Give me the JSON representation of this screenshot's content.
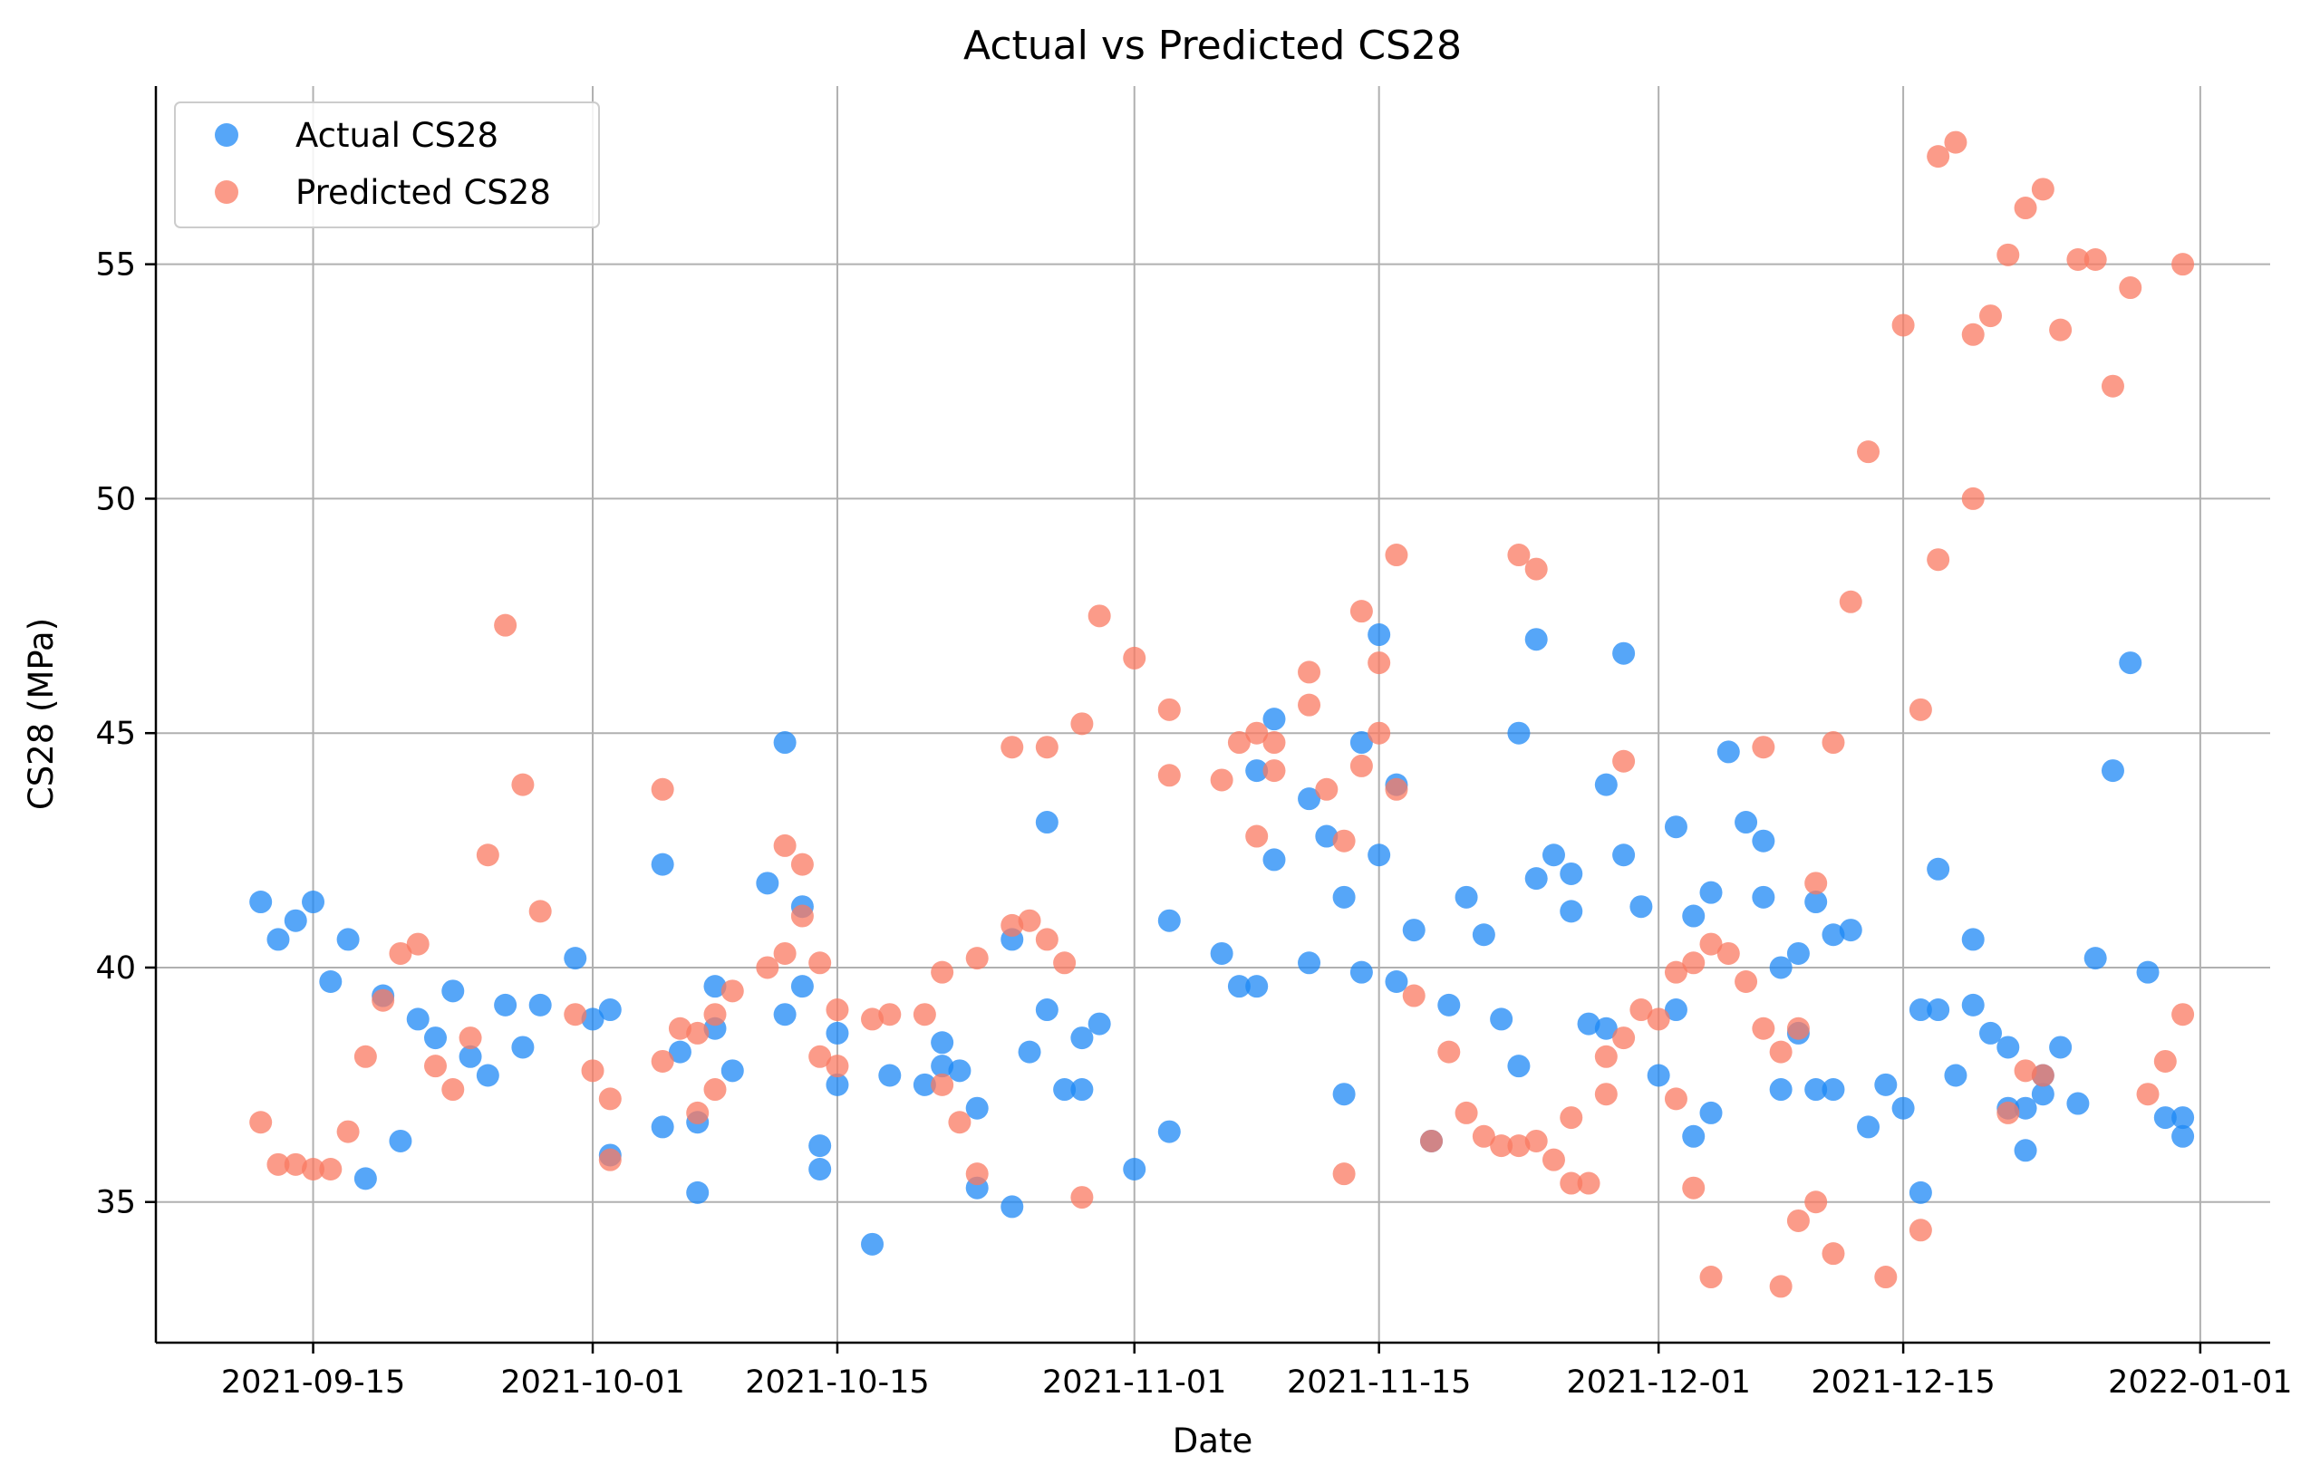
{
  "chart_data": {
    "type": "scatter",
    "title": "Actual vs Predicted CS28",
    "xlabel": "Date",
    "ylabel": "CS28 (MPa)",
    "x_type": "date",
    "xlim": [
      "2021-09-06",
      "2022-01-05"
    ],
    "ylim": [
      32,
      58.8
    ],
    "x_ticks": [
      "2021-09-15",
      "2021-10-01",
      "2021-10-15",
      "2021-11-01",
      "2021-11-15",
      "2021-12-01",
      "2021-12-15",
      "2022-01-01"
    ],
    "y_ticks": [
      35,
      40,
      45,
      50,
      55
    ],
    "grid": true,
    "legend_position": "top-left",
    "series": [
      {
        "name": "Actual CS28",
        "color": "#1E88F5",
        "points": [
          [
            "2021-09-12",
            41.4
          ],
          [
            "2021-09-13",
            40.6
          ],
          [
            "2021-09-14",
            41.0
          ],
          [
            "2021-09-15",
            41.4
          ],
          [
            "2021-09-16",
            39.7
          ],
          [
            "2021-09-17",
            40.6
          ],
          [
            "2021-09-18",
            35.5
          ],
          [
            "2021-09-19",
            39.4
          ],
          [
            "2021-09-20",
            36.3
          ],
          [
            "2021-09-21",
            38.9
          ],
          [
            "2021-09-22",
            38.5
          ],
          [
            "2021-09-23",
            39.5
          ],
          [
            "2021-09-24",
            38.1
          ],
          [
            "2021-09-25",
            37.7
          ],
          [
            "2021-09-26",
            39.2
          ],
          [
            "2021-09-27",
            38.3
          ],
          [
            "2021-09-28",
            39.2
          ],
          [
            "2021-09-30",
            40.2
          ],
          [
            "2021-10-01",
            38.9
          ],
          [
            "2021-10-02",
            39.1
          ],
          [
            "2021-10-02",
            36.0
          ],
          [
            "2021-10-05",
            42.2
          ],
          [
            "2021-10-05",
            36.6
          ],
          [
            "2021-10-06",
            38.2
          ],
          [
            "2021-10-07",
            35.2
          ],
          [
            "2021-10-07",
            36.7
          ],
          [
            "2021-10-08",
            39.6
          ],
          [
            "2021-10-08",
            38.7
          ],
          [
            "2021-10-09",
            37.8
          ],
          [
            "2021-10-11",
            41.8
          ],
          [
            "2021-10-12",
            44.8
          ],
          [
            "2021-10-12",
            39.0
          ],
          [
            "2021-10-13",
            41.3
          ],
          [
            "2021-10-13",
            39.6
          ],
          [
            "2021-10-14",
            36.2
          ],
          [
            "2021-10-14",
            35.7
          ],
          [
            "2021-10-15",
            38.6
          ],
          [
            "2021-10-15",
            37.5
          ],
          [
            "2021-10-17",
            34.1
          ],
          [
            "2021-10-18",
            37.7
          ],
          [
            "2021-10-20",
            37.5
          ],
          [
            "2021-10-21",
            38.4
          ],
          [
            "2021-10-21",
            37.9
          ],
          [
            "2021-10-22",
            37.8
          ],
          [
            "2021-10-23",
            37.0
          ],
          [
            "2021-10-23",
            35.3
          ],
          [
            "2021-10-25",
            40.6
          ],
          [
            "2021-10-25",
            34.9
          ],
          [
            "2021-10-26",
            38.2
          ],
          [
            "2021-10-27",
            43.1
          ],
          [
            "2021-10-27",
            39.1
          ],
          [
            "2021-10-28",
            37.4
          ],
          [
            "2021-10-29",
            38.5
          ],
          [
            "2021-10-29",
            37.4
          ],
          [
            "2021-10-30",
            38.8
          ],
          [
            "2021-11-01",
            35.7
          ],
          [
            "2021-11-03",
            41.0
          ],
          [
            "2021-11-03",
            36.5
          ],
          [
            "2021-11-06",
            40.3
          ],
          [
            "2021-11-07",
            39.6
          ],
          [
            "2021-11-08",
            44.2
          ],
          [
            "2021-11-08",
            39.6
          ],
          [
            "2021-11-09",
            45.3
          ],
          [
            "2021-11-09",
            42.3
          ],
          [
            "2021-11-11",
            43.6
          ],
          [
            "2021-11-11",
            40.1
          ],
          [
            "2021-11-12",
            42.8
          ],
          [
            "2021-11-13",
            41.5
          ],
          [
            "2021-11-13",
            37.3
          ],
          [
            "2021-11-14",
            44.8
          ],
          [
            "2021-11-14",
            39.9
          ],
          [
            "2021-11-15",
            47.1
          ],
          [
            "2021-11-15",
            42.4
          ],
          [
            "2021-11-16",
            43.9
          ],
          [
            "2021-11-16",
            39.7
          ],
          [
            "2021-11-17",
            40.8
          ],
          [
            "2021-11-18",
            36.3
          ],
          [
            "2021-11-19",
            39.2
          ],
          [
            "2021-11-20",
            41.5
          ],
          [
            "2021-11-21",
            40.7
          ],
          [
            "2021-11-22",
            38.9
          ],
          [
            "2021-11-23",
            45.0
          ],
          [
            "2021-11-23",
            37.9
          ],
          [
            "2021-11-24",
            47.0
          ],
          [
            "2021-11-24",
            41.9
          ],
          [
            "2021-11-25",
            42.4
          ],
          [
            "2021-11-26",
            42.0
          ],
          [
            "2021-11-26",
            41.2
          ],
          [
            "2021-11-27",
            38.8
          ],
          [
            "2021-11-28",
            43.9
          ],
          [
            "2021-11-28",
            38.7
          ],
          [
            "2021-11-29",
            46.7
          ],
          [
            "2021-11-29",
            42.4
          ],
          [
            "2021-11-30",
            41.3
          ],
          [
            "2021-12-01",
            37.7
          ],
          [
            "2021-12-02",
            43.0
          ],
          [
            "2021-12-02",
            39.1
          ],
          [
            "2021-12-03",
            41.1
          ],
          [
            "2021-12-03",
            36.4
          ],
          [
            "2021-12-04",
            41.6
          ],
          [
            "2021-12-04",
            36.9
          ],
          [
            "2021-12-05",
            44.6
          ],
          [
            "2021-12-06",
            43.1
          ],
          [
            "2021-12-07",
            42.7
          ],
          [
            "2021-12-07",
            41.5
          ],
          [
            "2021-12-08",
            40.0
          ],
          [
            "2021-12-08",
            37.4
          ],
          [
            "2021-12-09",
            40.3
          ],
          [
            "2021-12-09",
            38.6
          ],
          [
            "2021-12-10",
            41.4
          ],
          [
            "2021-12-10",
            37.4
          ],
          [
            "2021-12-11",
            40.7
          ],
          [
            "2021-12-11",
            37.4
          ],
          [
            "2021-12-12",
            40.8
          ],
          [
            "2021-12-13",
            36.6
          ],
          [
            "2021-12-14",
            37.5
          ],
          [
            "2021-12-15",
            37.0
          ],
          [
            "2021-12-16",
            39.1
          ],
          [
            "2021-12-16",
            35.2
          ],
          [
            "2021-12-17",
            42.1
          ],
          [
            "2021-12-17",
            39.1
          ],
          [
            "2021-12-18",
            37.7
          ],
          [
            "2021-12-19",
            40.6
          ],
          [
            "2021-12-19",
            39.2
          ],
          [
            "2021-12-20",
            38.6
          ],
          [
            "2021-12-21",
            38.3
          ],
          [
            "2021-12-21",
            37.0
          ],
          [
            "2021-12-22",
            37.0
          ],
          [
            "2021-12-22",
            36.1
          ],
          [
            "2021-12-23",
            37.7
          ],
          [
            "2021-12-23",
            37.3
          ],
          [
            "2021-12-24",
            38.3
          ],
          [
            "2021-12-25",
            37.1
          ],
          [
            "2021-12-26",
            40.2
          ],
          [
            "2021-12-27",
            44.2
          ],
          [
            "2021-12-28",
            46.5
          ],
          [
            "2021-12-29",
            39.9
          ],
          [
            "2021-12-30",
            36.8
          ],
          [
            "2021-12-31",
            36.8
          ],
          [
            "2021-12-31",
            36.4
          ]
        ]
      },
      {
        "name": "Predicted CS28",
        "color": "#FA7A62",
        "points": [
          [
            "2021-09-12",
            36.7
          ],
          [
            "2021-09-13",
            35.8
          ],
          [
            "2021-09-14",
            35.8
          ],
          [
            "2021-09-15",
            35.7
          ],
          [
            "2021-09-16",
            35.7
          ],
          [
            "2021-09-17",
            36.5
          ],
          [
            "2021-09-18",
            38.1
          ],
          [
            "2021-09-19",
            39.3
          ],
          [
            "2021-09-20",
            40.3
          ],
          [
            "2021-09-21",
            40.5
          ],
          [
            "2021-09-22",
            37.9
          ],
          [
            "2021-09-23",
            37.4
          ],
          [
            "2021-09-24",
            38.5
          ],
          [
            "2021-09-25",
            42.4
          ],
          [
            "2021-09-26",
            47.3
          ],
          [
            "2021-09-27",
            43.9
          ],
          [
            "2021-09-28",
            41.2
          ],
          [
            "2021-09-30",
            39.0
          ],
          [
            "2021-10-01",
            37.8
          ],
          [
            "2021-10-02",
            37.2
          ],
          [
            "2021-10-02",
            35.9
          ],
          [
            "2021-10-05",
            43.8
          ],
          [
            "2021-10-05",
            38.0
          ],
          [
            "2021-10-06",
            38.7
          ],
          [
            "2021-10-07",
            38.6
          ],
          [
            "2021-10-07",
            36.9
          ],
          [
            "2021-10-08",
            39.0
          ],
          [
            "2021-10-08",
            37.4
          ],
          [
            "2021-10-09",
            39.5
          ],
          [
            "2021-10-11",
            40.0
          ],
          [
            "2021-10-12",
            42.6
          ],
          [
            "2021-10-12",
            40.3
          ],
          [
            "2021-10-13",
            42.2
          ],
          [
            "2021-10-13",
            41.1
          ],
          [
            "2021-10-14",
            40.1
          ],
          [
            "2021-10-14",
            38.1
          ],
          [
            "2021-10-15",
            39.1
          ],
          [
            "2021-10-15",
            37.9
          ],
          [
            "2021-10-17",
            38.9
          ],
          [
            "2021-10-18",
            39.0
          ],
          [
            "2021-10-20",
            39.0
          ],
          [
            "2021-10-21",
            39.9
          ],
          [
            "2021-10-21",
            37.5
          ],
          [
            "2021-10-22",
            36.7
          ],
          [
            "2021-10-23",
            40.2
          ],
          [
            "2021-10-23",
            35.6
          ],
          [
            "2021-10-25",
            44.7
          ],
          [
            "2021-10-25",
            40.9
          ],
          [
            "2021-10-26",
            41.0
          ],
          [
            "2021-10-27",
            44.7
          ],
          [
            "2021-10-27",
            40.6
          ],
          [
            "2021-10-28",
            40.1
          ],
          [
            "2021-10-29",
            45.2
          ],
          [
            "2021-10-29",
            35.1
          ],
          [
            "2021-10-30",
            47.5
          ],
          [
            "2021-11-01",
            46.6
          ],
          [
            "2021-11-03",
            45.5
          ],
          [
            "2021-11-03",
            44.1
          ],
          [
            "2021-11-06",
            44.0
          ],
          [
            "2021-11-07",
            44.8
          ],
          [
            "2021-11-08",
            45.0
          ],
          [
            "2021-11-08",
            42.8
          ],
          [
            "2021-11-09",
            44.8
          ],
          [
            "2021-11-09",
            44.2
          ],
          [
            "2021-11-11",
            46.3
          ],
          [
            "2021-11-11",
            45.6
          ],
          [
            "2021-11-12",
            43.8
          ],
          [
            "2021-11-13",
            42.7
          ],
          [
            "2021-11-13",
            35.6
          ],
          [
            "2021-11-14",
            47.6
          ],
          [
            "2021-11-14",
            44.3
          ],
          [
            "2021-11-15",
            46.5
          ],
          [
            "2021-11-15",
            45.0
          ],
          [
            "2021-11-16",
            48.8
          ],
          [
            "2021-11-16",
            43.8
          ],
          [
            "2021-11-17",
            39.4
          ],
          [
            "2021-11-18",
            36.3
          ],
          [
            "2021-11-19",
            38.2
          ],
          [
            "2021-11-20",
            36.9
          ],
          [
            "2021-11-21",
            36.4
          ],
          [
            "2021-11-22",
            36.2
          ],
          [
            "2021-11-23",
            48.8
          ],
          [
            "2021-11-23",
            36.2
          ],
          [
            "2021-11-24",
            48.5
          ],
          [
            "2021-11-24",
            36.3
          ],
          [
            "2021-11-25",
            35.9
          ],
          [
            "2021-11-26",
            36.8
          ],
          [
            "2021-11-26",
            35.4
          ],
          [
            "2021-11-27",
            35.4
          ],
          [
            "2021-11-28",
            38.1
          ],
          [
            "2021-11-28",
            37.3
          ],
          [
            "2021-11-29",
            44.4
          ],
          [
            "2021-11-29",
            38.5
          ],
          [
            "2021-11-30",
            39.1
          ],
          [
            "2021-12-01",
            38.9
          ],
          [
            "2021-12-02",
            39.9
          ],
          [
            "2021-12-02",
            37.2
          ],
          [
            "2021-12-03",
            40.1
          ],
          [
            "2021-12-03",
            35.3
          ],
          [
            "2021-12-04",
            40.5
          ],
          [
            "2021-12-04",
            33.4
          ],
          [
            "2021-12-05",
            40.3
          ],
          [
            "2021-12-06",
            39.7
          ],
          [
            "2021-12-07",
            44.7
          ],
          [
            "2021-12-07",
            38.7
          ],
          [
            "2021-12-08",
            38.2
          ],
          [
            "2021-12-08",
            33.2
          ],
          [
            "2021-12-09",
            38.7
          ],
          [
            "2021-12-09",
            34.6
          ],
          [
            "2021-12-10",
            41.8
          ],
          [
            "2021-12-10",
            35.0
          ],
          [
            "2021-12-11",
            44.8
          ],
          [
            "2021-12-11",
            33.9
          ],
          [
            "2021-12-12",
            47.8
          ],
          [
            "2021-12-13",
            51.0
          ],
          [
            "2021-12-14",
            33.4
          ],
          [
            "2021-12-15",
            53.7
          ],
          [
            "2021-12-16",
            45.5
          ],
          [
            "2021-12-16",
            34.4
          ],
          [
            "2021-12-17",
            57.3
          ],
          [
            "2021-12-17",
            48.7
          ],
          [
            "2021-12-18",
            57.6
          ],
          [
            "2021-12-19",
            53.5
          ],
          [
            "2021-12-19",
            50.0
          ],
          [
            "2021-12-20",
            53.9
          ],
          [
            "2021-12-21",
            55.2
          ],
          [
            "2021-12-21",
            36.9
          ],
          [
            "2021-12-22",
            56.2
          ],
          [
            "2021-12-22",
            37.8
          ],
          [
            "2021-12-23",
            56.6
          ],
          [
            "2021-12-23",
            37.7
          ],
          [
            "2021-12-24",
            53.6
          ],
          [
            "2021-12-25",
            55.1
          ],
          [
            "2021-12-26",
            55.1
          ],
          [
            "2021-12-27",
            52.4
          ],
          [
            "2021-12-28",
            54.5
          ],
          [
            "2021-12-29",
            37.3
          ],
          [
            "2021-12-30",
            38.0
          ],
          [
            "2021-12-31",
            55.0
          ],
          [
            "2021-12-31",
            39.0
          ]
        ]
      }
    ]
  }
}
